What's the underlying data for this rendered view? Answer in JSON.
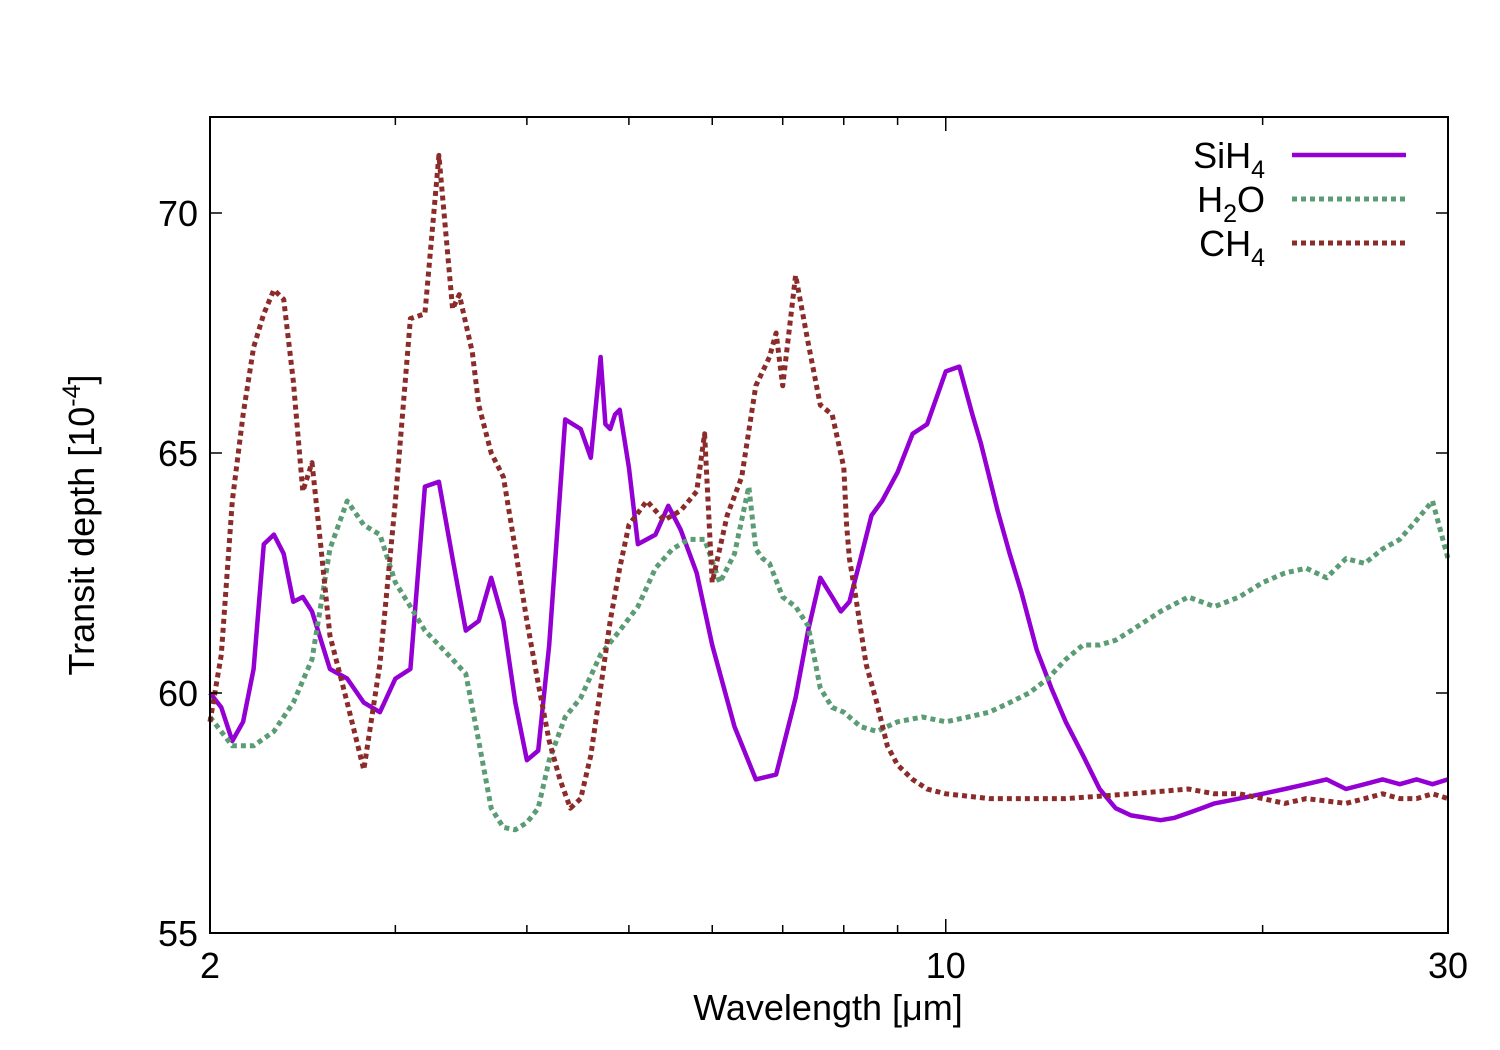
{
  "chart_data": {
    "type": "line",
    "title": "",
    "xlabel": "Wavelength [μm]",
    "ylabel": "Transit depth [10",
    "ylabel_exponent": "-4",
    "ylabel_close": "]",
    "x_scale": "log",
    "xlim": [
      2,
      30
    ],
    "ylim": [
      55,
      72
    ],
    "x_ticks": [
      2,
      10,
      30
    ],
    "x_tick_labels": [
      "2",
      "10",
      "30"
    ],
    "x_minor_ticks": [
      3,
      4,
      5,
      6,
      7,
      8,
      9,
      20
    ],
    "y_ticks": [
      55,
      60,
      65,
      70
    ],
    "y_tick_labels": [
      "55",
      "60",
      "65",
      "70"
    ],
    "grid": false,
    "legend_position": "top-right",
    "series": [
      {
        "name": "SiH4",
        "label": "SiH",
        "subscript": "4",
        "color": "#9400d3",
        "style": "solid",
        "x": [
          2.0,
          2.05,
          2.1,
          2.15,
          2.2,
          2.25,
          2.3,
          2.35,
          2.4,
          2.45,
          2.5,
          2.6,
          2.7,
          2.8,
          2.9,
          3.0,
          3.1,
          3.2,
          3.3,
          3.4,
          3.5,
          3.6,
          3.7,
          3.8,
          3.9,
          4.0,
          4.1,
          4.2,
          4.35,
          4.5,
          4.6,
          4.7,
          4.75,
          4.8,
          4.85,
          4.9,
          5.0,
          5.1,
          5.2,
          5.3,
          5.45,
          5.6,
          5.8,
          6.0,
          6.3,
          6.6,
          6.9,
          7.2,
          7.4,
          7.6,
          7.8,
          7.95,
          8.1,
          8.3,
          8.5,
          8.7,
          9.0,
          9.3,
          9.6,
          10.0,
          10.3,
          10.6,
          10.8,
          11.0,
          11.2,
          11.5,
          11.8,
          12.2,
          12.6,
          13.0,
          13.5,
          14.0,
          14.5,
          15.0,
          15.5,
          16.0,
          16.5,
          17.0,
          17.5,
          18.0,
          19.0,
          20.0,
          21.0,
          22.0,
          23.0,
          24.0,
          25.0,
          26.0,
          27.0,
          28.0,
          29.0,
          30.0
        ],
        "y": [
          60.0,
          59.7,
          59.0,
          59.4,
          60.5,
          63.1,
          63.3,
          62.9,
          61.9,
          62.0,
          61.7,
          60.5,
          60.3,
          59.8,
          59.6,
          60.3,
          60.5,
          64.3,
          64.4,
          62.8,
          61.3,
          61.5,
          62.4,
          61.5,
          59.8,
          58.6,
          58.8,
          61.0,
          65.7,
          65.5,
          64.9,
          67.0,
          65.6,
          65.5,
          65.8,
          65.9,
          64.7,
          63.1,
          63.2,
          63.3,
          63.9,
          63.4,
          62.5,
          61.0,
          59.3,
          58.2,
          58.3,
          59.9,
          61.3,
          62.4,
          62.0,
          61.7,
          61.9,
          62.8,
          63.7,
          64.0,
          64.6,
          65.4,
          65.6,
          66.7,
          66.8,
          65.8,
          65.2,
          64.5,
          63.8,
          62.9,
          62.1,
          60.9,
          60.1,
          59.4,
          58.7,
          58.0,
          57.6,
          57.45,
          57.4,
          57.35,
          57.4,
          57.5,
          57.6,
          57.7,
          57.8,
          57.9,
          58.0,
          58.1,
          58.2,
          58.0,
          58.1,
          58.2,
          58.1,
          58.2,
          58.1,
          58.2
        ]
      },
      {
        "name": "H2O",
        "label": "H",
        "subscript": "2",
        "label_suffix": "O",
        "color": "#5b9c74",
        "style": "dotted",
        "x": [
          2.0,
          2.1,
          2.2,
          2.3,
          2.4,
          2.5,
          2.6,
          2.7,
          2.8,
          2.9,
          3.0,
          3.1,
          3.2,
          3.3,
          3.4,
          3.5,
          3.6,
          3.7,
          3.8,
          3.9,
          4.0,
          4.1,
          4.2,
          4.35,
          4.5,
          4.7,
          4.9,
          5.1,
          5.3,
          5.5,
          5.7,
          5.9,
          6.1,
          6.3,
          6.5,
          6.6,
          6.7,
          6.8,
          7.0,
          7.2,
          7.4,
          7.6,
          7.8,
          8.0,
          8.3,
          8.6,
          9.0,
          9.5,
          10.0,
          10.5,
          11.0,
          11.5,
          12.0,
          12.5,
          13.0,
          13.5,
          14.0,
          14.5,
          15.0,
          16.0,
          17.0,
          18.0,
          19.0,
          20.0,
          21.0,
          22.0,
          23.0,
          24.0,
          25.0,
          26.0,
          27.0,
          28.0,
          29.0,
          30.0
        ],
        "y": [
          59.5,
          58.9,
          58.9,
          59.2,
          59.8,
          60.7,
          63.0,
          64.0,
          63.5,
          63.3,
          62.3,
          61.8,
          61.3,
          61.0,
          60.7,
          60.4,
          59.0,
          57.6,
          57.2,
          57.15,
          57.3,
          57.6,
          58.6,
          59.5,
          59.9,
          60.8,
          61.3,
          61.8,
          62.6,
          63.0,
          63.2,
          63.2,
          62.3,
          62.9,
          64.3,
          63.0,
          62.8,
          62.7,
          62.0,
          61.8,
          61.4,
          60.1,
          59.7,
          59.6,
          59.3,
          59.2,
          59.4,
          59.5,
          59.4,
          59.5,
          59.6,
          59.8,
          60.0,
          60.3,
          60.7,
          61.0,
          61.0,
          61.1,
          61.3,
          61.7,
          62.0,
          61.8,
          62.0,
          62.3,
          62.5,
          62.6,
          62.4,
          62.8,
          62.7,
          63.0,
          63.2,
          63.6,
          64.0,
          62.8
        ]
      },
      {
        "name": "CH4",
        "label": "CH",
        "subscript": "4",
        "color": "#8b2c2a",
        "style": "dotted",
        "x": [
          2.0,
          2.05,
          2.1,
          2.15,
          2.2,
          2.25,
          2.3,
          2.35,
          2.4,
          2.45,
          2.5,
          2.55,
          2.6,
          2.7,
          2.8,
          2.9,
          3.0,
          3.1,
          3.2,
          3.3,
          3.4,
          3.45,
          3.5,
          3.55,
          3.6,
          3.7,
          3.8,
          3.9,
          4.0,
          4.1,
          4.2,
          4.3,
          4.4,
          4.5,
          4.6,
          4.7,
          4.8,
          4.9,
          5.0,
          5.2,
          5.4,
          5.6,
          5.8,
          5.9,
          6.0,
          6.2,
          6.4,
          6.6,
          6.8,
          6.9,
          7.0,
          7.2,
          7.4,
          7.6,
          7.8,
          8.0,
          8.05,
          8.1,
          8.2,
          8.4,
          8.6,
          8.8,
          9.0,
          9.3,
          9.6,
          10.0,
          10.5,
          11.0,
          12.0,
          13.0,
          14.0,
          15.0,
          16.0,
          17.0,
          18.0,
          19.0,
          20.0,
          21.0,
          22.0,
          23.0,
          24.0,
          25.0,
          26.0,
          27.0,
          28.0,
          29.0,
          30.0
        ],
        "y": [
          59.4,
          60.8,
          64.0,
          65.8,
          67.2,
          67.9,
          68.4,
          68.2,
          66.5,
          64.2,
          64.8,
          63.0,
          61.2,
          59.8,
          58.4,
          60.6,
          64.0,
          67.8,
          67.9,
          71.2,
          68.0,
          68.3,
          67.7,
          67.1,
          66.0,
          65.0,
          64.5,
          63.0,
          61.5,
          60.2,
          59.0,
          58.2,
          57.6,
          57.8,
          58.7,
          60.1,
          61.5,
          62.6,
          63.5,
          64.0,
          63.6,
          63.8,
          64.2,
          65.4,
          62.3,
          63.7,
          64.5,
          66.4,
          67.0,
          67.5,
          66.4,
          68.7,
          67.3,
          66.0,
          65.8,
          64.7,
          63.5,
          62.8,
          62.1,
          60.6,
          59.8,
          58.9,
          58.5,
          58.2,
          58.0,
          57.9,
          57.85,
          57.8,
          57.8,
          57.8,
          57.85,
          57.9,
          57.95,
          58.0,
          57.9,
          57.9,
          57.8,
          57.7,
          57.8,
          57.75,
          57.7,
          57.8,
          57.9,
          57.8,
          57.8,
          57.9,
          57.8
        ]
      }
    ]
  }
}
